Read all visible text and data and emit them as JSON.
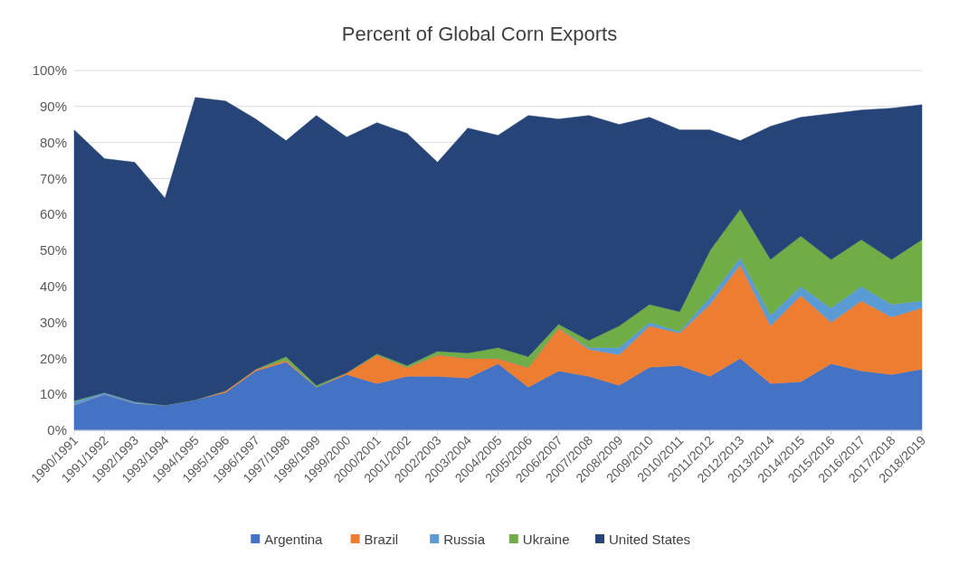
{
  "chart_data": {
    "type": "area",
    "stacked": true,
    "title": "Percent of Global Corn Exports",
    "categories": [
      "1990/1991",
      "1991/1992",
      "1992/1993",
      "1993/1994",
      "1994/1995",
      "1995/1996",
      "1996/1997",
      "1997/1998",
      "1998/1999",
      "1999/2000",
      "2000/2001",
      "2001/2002",
      "2002/2003",
      "2003/2004",
      "2004/2005",
      "2005/2006",
      "2006/2007",
      "2007/2008",
      "2008/2009",
      "2009/2010",
      "2010/2011",
      "2011/2012",
      "2012/2013",
      "2013/2014",
      "2014/2015",
      "2015/2016",
      "2016/2017",
      "2017/2018",
      "2018/2019"
    ],
    "series": [
      {
        "name": "Argentina",
        "color": "#4472c4",
        "values": [
          7,
          10,
          7.5,
          7,
          8.5,
          10.5,
          16.5,
          19,
          12,
          15.5,
          13,
          15,
          15,
          14.5,
          18.5,
          12,
          16.5,
          15,
          12.5,
          17.5,
          18,
          15,
          20,
          13,
          13.5,
          18.5,
          16.5,
          15.5,
          17
        ]
      },
      {
        "name": "Brazil",
        "color": "#ed7d31",
        "values": [
          0,
          0,
          0,
          0,
          0,
          0.5,
          0.5,
          0.5,
          0,
          0.5,
          8,
          2.5,
          6,
          5.5,
          1.5,
          5.5,
          12,
          7.5,
          8.5,
          11.5,
          9,
          20,
          26,
          16,
          24,
          11.5,
          19.5,
          16,
          17
        ]
      },
      {
        "name": "Russia",
        "color": "#5b9bd5",
        "values": [
          1,
          0.5,
          0.5,
          0,
          0,
          0,
          0,
          0,
          0,
          0,
          0,
          0,
          0,
          0,
          0,
          0,
          0,
          0.5,
          2,
          1,
          0.5,
          2,
          2,
          3,
          2.5,
          4,
          4,
          3.5,
          2
        ]
      },
      {
        "name": "Ukraine",
        "color": "#70ad47",
        "values": [
          0.2,
          0,
          0,
          0,
          0,
          0,
          0,
          1,
          0.5,
          0,
          0.3,
          0.5,
          1,
          1.5,
          3,
          3,
          1,
          2,
          6,
          5,
          5.5,
          13,
          13.5,
          15.5,
          14,
          13.5,
          13,
          12.5,
          17
        ]
      },
      {
        "name": "United States",
        "color": "#264478",
        "values": [
          75.3,
          65,
          66.5,
          57.5,
          84,
          80.5,
          69.5,
          60,
          75,
          65.5,
          64.2,
          64.5,
          52.5,
          62.5,
          59,
          67,
          57,
          62.5,
          56,
          52,
          50.5,
          33.5,
          19,
          37,
          33,
          40.5,
          36,
          42,
          37.5
        ]
      }
    ],
    "ylim": [
      0,
      100
    ],
    "yticks": [
      {
        "value": 0,
        "label": "0%"
      },
      {
        "value": 10,
        "label": "10%"
      },
      {
        "value": 20,
        "label": "20%"
      },
      {
        "value": 30,
        "label": "30%"
      },
      {
        "value": 40,
        "label": "40%"
      },
      {
        "value": 50,
        "label": "50%"
      },
      {
        "value": 60,
        "label": "60%"
      },
      {
        "value": 70,
        "label": "70%"
      },
      {
        "value": 80,
        "label": "80%"
      },
      {
        "value": 90,
        "label": "90%"
      },
      {
        "value": 100,
        "label": "100%"
      }
    ],
    "grid": "y",
    "legend": "bottom"
  }
}
